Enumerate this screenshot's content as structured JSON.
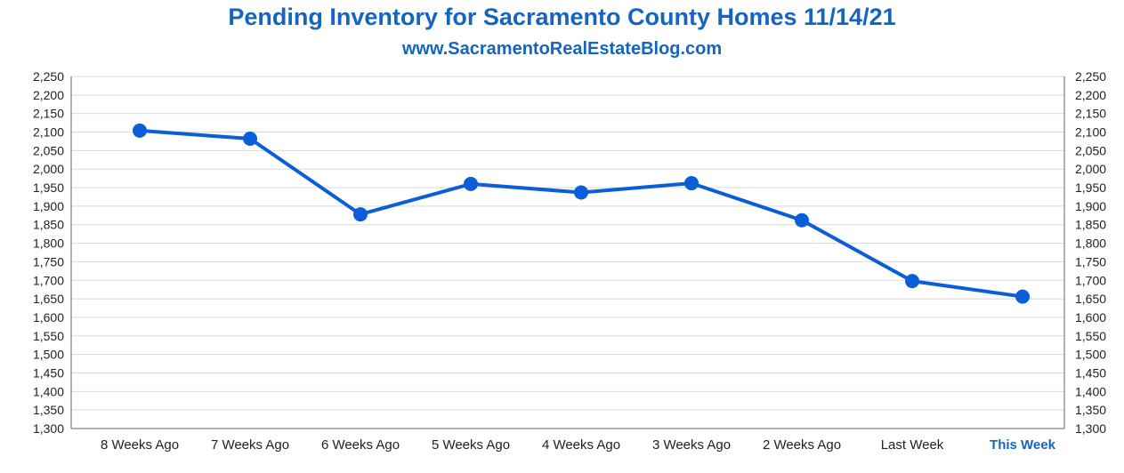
{
  "chart_data": {
    "type": "line",
    "title": "Pending Inventory for Sacramento County Homes 11/14/21",
    "subtitle": "www.SacramentoRealEstateBlog.com",
    "xlabel": "",
    "ylabel": "",
    "categories": [
      "8 Weeks Ago",
      "7 Weeks Ago",
      "6 Weeks Ago",
      "5 Weeks Ago",
      "4 Weeks Ago",
      "3 Weeks Ago",
      "2 Weeks Ago",
      "Last Week",
      "This Week"
    ],
    "highlight_category": "This Week",
    "series": [
      {
        "name": "Pending Inventory",
        "values": [
          2104,
          2082,
          1878,
          1960,
          1937,
          1962,
          1862,
          1698,
          1656
        ],
        "color": "#0b5ed7"
      }
    ],
    "ylim": [
      1300,
      2250
    ],
    "yticks": [
      1300,
      1350,
      1400,
      1450,
      1500,
      1550,
      1600,
      1650,
      1700,
      1750,
      1800,
      1850,
      1900,
      1950,
      2000,
      2050,
      2100,
      2150,
      2200,
      2250
    ],
    "grid": true,
    "secondary_y_axis": true,
    "colors": {
      "title": "#1565c0",
      "line": "#0b5ed7",
      "grid": "#d9d9d9",
      "axis": "#666666",
      "highlight_label": "#1565c0"
    }
  }
}
